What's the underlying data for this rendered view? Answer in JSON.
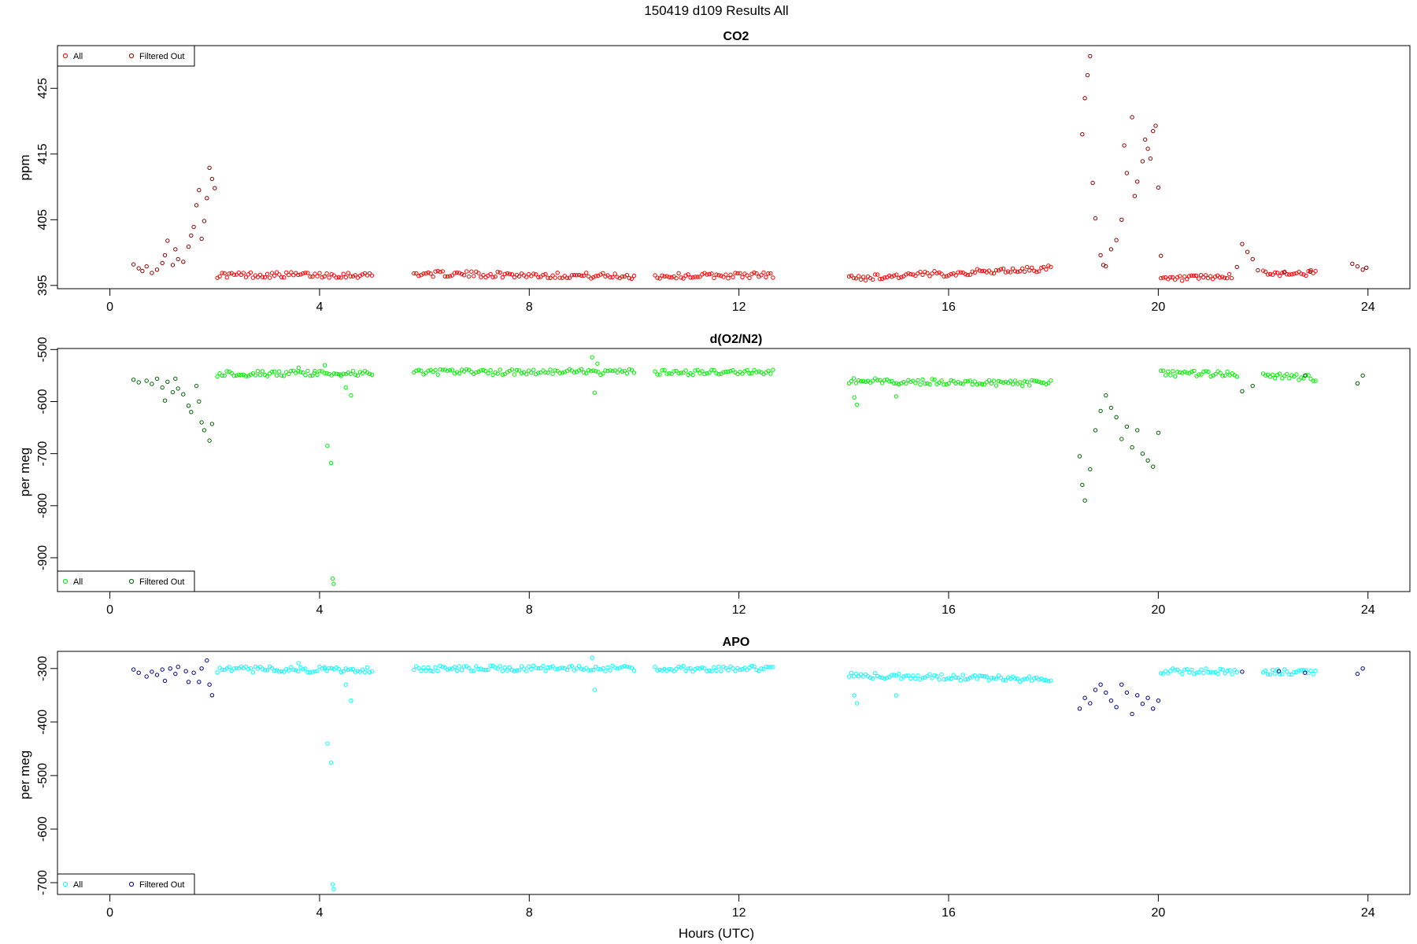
{
  "figure": {
    "title": "150419   d109   Results All",
    "xlabel": "Hours (UTC)"
  },
  "chart_data": [
    {
      "type": "scatter",
      "title": "CO2",
      "xlabel": "Hours (UTC)",
      "ylabel": "ppm",
      "xlim": [
        -1,
        24.8
      ],
      "ylim": [
        394.5,
        431.5
      ],
      "xticks": [
        0,
        4,
        8,
        12,
        16,
        20,
        24
      ],
      "yticks": [
        395,
        405,
        415,
        425
      ],
      "legend": {
        "position": "top-left",
        "entries": [
          {
            "label": "All",
            "color": "#ff0000"
          },
          {
            "label": "Filtered Out",
            "color": "#8b0000"
          }
        ]
      },
      "series": [
        {
          "name": "All",
          "color": "#ff0000",
          "segments": [
            {
              "x": [
                2.05,
                5.0
              ],
              "y": [
                396.6,
                396.6
              ]
            },
            {
              "x": [
                5.8,
                10.0
              ],
              "y": [
                396.8,
                396.4
              ]
            },
            {
              "x": [
                10.4,
                12.65
              ],
              "y": [
                396.4,
                396.6
              ]
            },
            {
              "x": [
                14.1,
                17.95
              ],
              "y": [
                396.1,
                397.6
              ]
            },
            {
              "x": [
                20.05,
                21.4
              ],
              "y": [
                395.9,
                396.3
              ]
            },
            {
              "x": [
                22.0,
                23.0
              ],
              "y": [
                396.8,
                396.9
              ]
            }
          ]
        },
        {
          "name": "Filtered Out",
          "color": "#8b0000",
          "points": [
            [
              0.45,
              398.2
            ],
            [
              0.55,
              397.6
            ],
            [
              0.62,
              397.2
            ],
            [
              0.7,
              397.9
            ],
            [
              0.8,
              396.9
            ],
            [
              0.9,
              397.4
            ],
            [
              1.0,
              398.4
            ],
            [
              1.05,
              399.6
            ],
            [
              1.1,
              401.8
            ],
            [
              1.2,
              398.1
            ],
            [
              1.25,
              400.5
            ],
            [
              1.3,
              399.0
            ],
            [
              1.4,
              398.6
            ],
            [
              1.5,
              400.9
            ],
            [
              1.55,
              402.6
            ],
            [
              1.6,
              403.9
            ],
            [
              1.65,
              407.2
            ],
            [
              1.7,
              409.5
            ],
            [
              1.75,
              402.1
            ],
            [
              1.8,
              404.8
            ],
            [
              1.85,
              408.3
            ],
            [
              1.9,
              412.9
            ],
            [
              1.95,
              411.2
            ],
            [
              2.0,
              409.8
            ],
            [
              18.55,
              418.0
            ],
            [
              18.6,
              423.5
            ],
            [
              18.65,
              427.0
            ],
            [
              18.7,
              429.9
            ],
            [
              18.75,
              410.6
            ],
            [
              18.8,
              405.2
            ],
            [
              18.9,
              399.6
            ],
            [
              18.95,
              398.1
            ],
            [
              19.0,
              397.9
            ],
            [
              19.1,
              400.5
            ],
            [
              19.2,
              401.9
            ],
            [
              19.3,
              405.0
            ],
            [
              19.35,
              416.3
            ],
            [
              19.4,
              412.1
            ],
            [
              19.5,
              420.6
            ],
            [
              19.55,
              408.6
            ],
            [
              19.6,
              410.8
            ],
            [
              19.7,
              413.9
            ],
            [
              19.75,
              417.2
            ],
            [
              19.8,
              415.8
            ],
            [
              19.85,
              414.3
            ],
            [
              19.9,
              418.5
            ],
            [
              19.95,
              419.3
            ],
            [
              20.0,
              409.9
            ],
            [
              20.05,
              399.5
            ],
            [
              21.5,
              397.8
            ],
            [
              21.6,
              401.3
            ],
            [
              21.7,
              400.1
            ],
            [
              21.8,
              399.0
            ],
            [
              21.9,
              397.3
            ],
            [
              22.4,
              397.0
            ],
            [
              22.9,
              397.1
            ],
            [
              23.7,
              398.3
            ],
            [
              23.8,
              397.9
            ],
            [
              23.9,
              397.4
            ],
            [
              23.97,
              397.7
            ]
          ]
        }
      ]
    },
    {
      "type": "scatter",
      "title": "d(O2/N2)",
      "xlabel": "Hours (UTC)",
      "ylabel": "per meg",
      "xlim": [
        -1,
        24.8
      ],
      "ylim": [
        -965,
        -498
      ],
      "xticks": [
        0,
        4,
        8,
        12,
        16,
        20,
        24
      ],
      "yticks": [
        -500,
        -600,
        -700,
        -800,
        -900
      ],
      "legend": {
        "position": "bottom-left",
        "entries": [
          {
            "label": "All",
            "color": "#00ee00"
          },
          {
            "label": "Filtered Out",
            "color": "#006400"
          }
        ]
      },
      "series": [
        {
          "name": "All",
          "color": "#00ee00",
          "segments": [
            {
              "x": [
                2.05,
                5.0
              ],
              "y": [
                -546,
                -546
              ]
            },
            {
              "x": [
                5.8,
                10.0
              ],
              "y": [
                -543,
                -543
              ]
            },
            {
              "x": [
                10.4,
                12.65
              ],
              "y": [
                -545,
                -543
              ]
            },
            {
              "x": [
                14.1,
                17.95
              ],
              "y": [
                -560,
                -565
              ]
            },
            {
              "x": [
                20.05,
                21.5
              ],
              "y": [
                -545,
                -548
              ]
            },
            {
              "x": [
                22.0,
                23.0
              ],
              "y": [
                -550,
                -555
              ]
            }
          ],
          "points": [
            [
              3.6,
              -535
            ],
            [
              3.9,
              -545
            ],
            [
              4.1,
              -530
            ],
            [
              4.15,
              -685
            ],
            [
              4.22,
              -718
            ],
            [
              4.25,
              -940
            ],
            [
              4.27,
              -950
            ],
            [
              4.4,
              -548
            ],
            [
              4.5,
              -573
            ],
            [
              4.6,
              -588
            ],
            [
              9.2,
              -515
            ],
            [
              9.25,
              -583
            ],
            [
              9.3,
              -527
            ],
            [
              14.2,
              -592
            ],
            [
              14.25,
              -606
            ],
            [
              15.0,
              -590
            ]
          ]
        },
        {
          "name": "Filtered Out",
          "color": "#006400",
          "points": [
            [
              0.45,
              -558
            ],
            [
              0.55,
              -563
            ],
            [
              0.7,
              -560
            ],
            [
              0.8,
              -566
            ],
            [
              0.9,
              -556
            ],
            [
              1.0,
              -573
            ],
            [
              1.05,
              -598
            ],
            [
              1.1,
              -562
            ],
            [
              1.2,
              -582
            ],
            [
              1.25,
              -556
            ],
            [
              1.3,
              -575
            ],
            [
              1.4,
              -586
            ],
            [
              1.5,
              -608
            ],
            [
              1.55,
              -620
            ],
            [
              1.65,
              -570
            ],
            [
              1.7,
              -600
            ],
            [
              1.75,
              -640
            ],
            [
              1.8,
              -655
            ],
            [
              1.9,
              -675
            ],
            [
              1.95,
              -643
            ],
            [
              18.5,
              -705
            ],
            [
              18.55,
              -760
            ],
            [
              18.6,
              -790
            ],
            [
              18.7,
              -730
            ],
            [
              18.8,
              -655
            ],
            [
              18.9,
              -618
            ],
            [
              19.0,
              -588
            ],
            [
              19.1,
              -612
            ],
            [
              19.2,
              -630
            ],
            [
              19.3,
              -672
            ],
            [
              19.4,
              -648
            ],
            [
              19.5,
              -688
            ],
            [
              19.6,
              -655
            ],
            [
              19.7,
              -700
            ],
            [
              19.8,
              -713
            ],
            [
              19.9,
              -725
            ],
            [
              20.0,
              -660
            ],
            [
              21.6,
              -580
            ],
            [
              21.8,
              -570
            ],
            [
              22.8,
              -550
            ],
            [
              23.8,
              -565
            ],
            [
              23.9,
              -550
            ]
          ]
        }
      ]
    },
    {
      "type": "scatter",
      "title": "APO",
      "xlabel": "Hours (UTC)",
      "ylabel": "per meg",
      "xlim": [
        -1,
        24.8
      ],
      "ylim": [
        -722,
        -268
      ],
      "xticks": [
        0,
        4,
        8,
        12,
        16,
        20,
        24
      ],
      "yticks": [
        -300,
        -400,
        -500,
        -600,
        -700
      ],
      "legend": {
        "position": "bottom-left",
        "entries": [
          {
            "label": "All",
            "color": "#00ffff"
          },
          {
            "label": "Filtered Out",
            "color": "#00008b"
          }
        ]
      },
      "series": [
        {
          "name": "All",
          "color": "#00ffff",
          "segments": [
            {
              "x": [
                2.05,
                5.0
              ],
              "y": [
                -302,
                -302
              ]
            },
            {
              "x": [
                5.8,
                10.0
              ],
              "y": [
                -300,
                -300
              ]
            },
            {
              "x": [
                10.4,
                12.65
              ],
              "y": [
                -301,
                -299
              ]
            },
            {
              "x": [
                14.1,
                17.95
              ],
              "y": [
                -313,
                -320
              ]
            },
            {
              "x": [
                20.05,
                21.5
              ],
              "y": [
                -304,
                -306
              ]
            },
            {
              "x": [
                22.0,
                23.0
              ],
              "y": [
                -306,
                -308
              ]
            }
          ],
          "points": [
            [
              3.6,
              -290
            ],
            [
              4.1,
              -300
            ],
            [
              4.15,
              -440
            ],
            [
              4.22,
              -476
            ],
            [
              4.25,
              -703
            ],
            [
              4.27,
              -712
            ],
            [
              4.5,
              -330
            ],
            [
              4.6,
              -360
            ],
            [
              9.2,
              -280
            ],
            [
              9.25,
              -340
            ],
            [
              14.2,
              -350
            ],
            [
              14.25,
              -365
            ],
            [
              15.0,
              -350
            ]
          ]
        },
        {
          "name": "Filtered Out",
          "color": "#00008b",
          "points": [
            [
              0.45,
              -302
            ],
            [
              0.55,
              -308
            ],
            [
              0.7,
              -315
            ],
            [
              0.8,
              -306
            ],
            [
              0.9,
              -312
            ],
            [
              1.0,
              -302
            ],
            [
              1.05,
              -323
            ],
            [
              1.15,
              -300
            ],
            [
              1.25,
              -310
            ],
            [
              1.3,
              -297
            ],
            [
              1.45,
              -305
            ],
            [
              1.5,
              -325
            ],
            [
              1.6,
              -308
            ],
            [
              1.7,
              -325
            ],
            [
              1.75,
              -300
            ],
            [
              1.85,
              -285
            ],
            [
              1.9,
              -330
            ],
            [
              1.95,
              -350
            ],
            [
              18.5,
              -375
            ],
            [
              18.6,
              -355
            ],
            [
              18.7,
              -365
            ],
            [
              18.8,
              -340
            ],
            [
              18.9,
              -330
            ],
            [
              19.0,
              -345
            ],
            [
              19.1,
              -360
            ],
            [
              19.2,
              -372
            ],
            [
              19.3,
              -330
            ],
            [
              19.4,
              -345
            ],
            [
              19.5,
              -385
            ],
            [
              19.6,
              -350
            ],
            [
              19.7,
              -366
            ],
            [
              19.8,
              -355
            ],
            [
              19.9,
              -375
            ],
            [
              20.0,
              -360
            ],
            [
              21.6,
              -306
            ],
            [
              22.3,
              -305
            ],
            [
              22.8,
              -308
            ],
            [
              23.8,
              -310
            ],
            [
              23.9,
              -300
            ]
          ]
        }
      ]
    }
  ]
}
